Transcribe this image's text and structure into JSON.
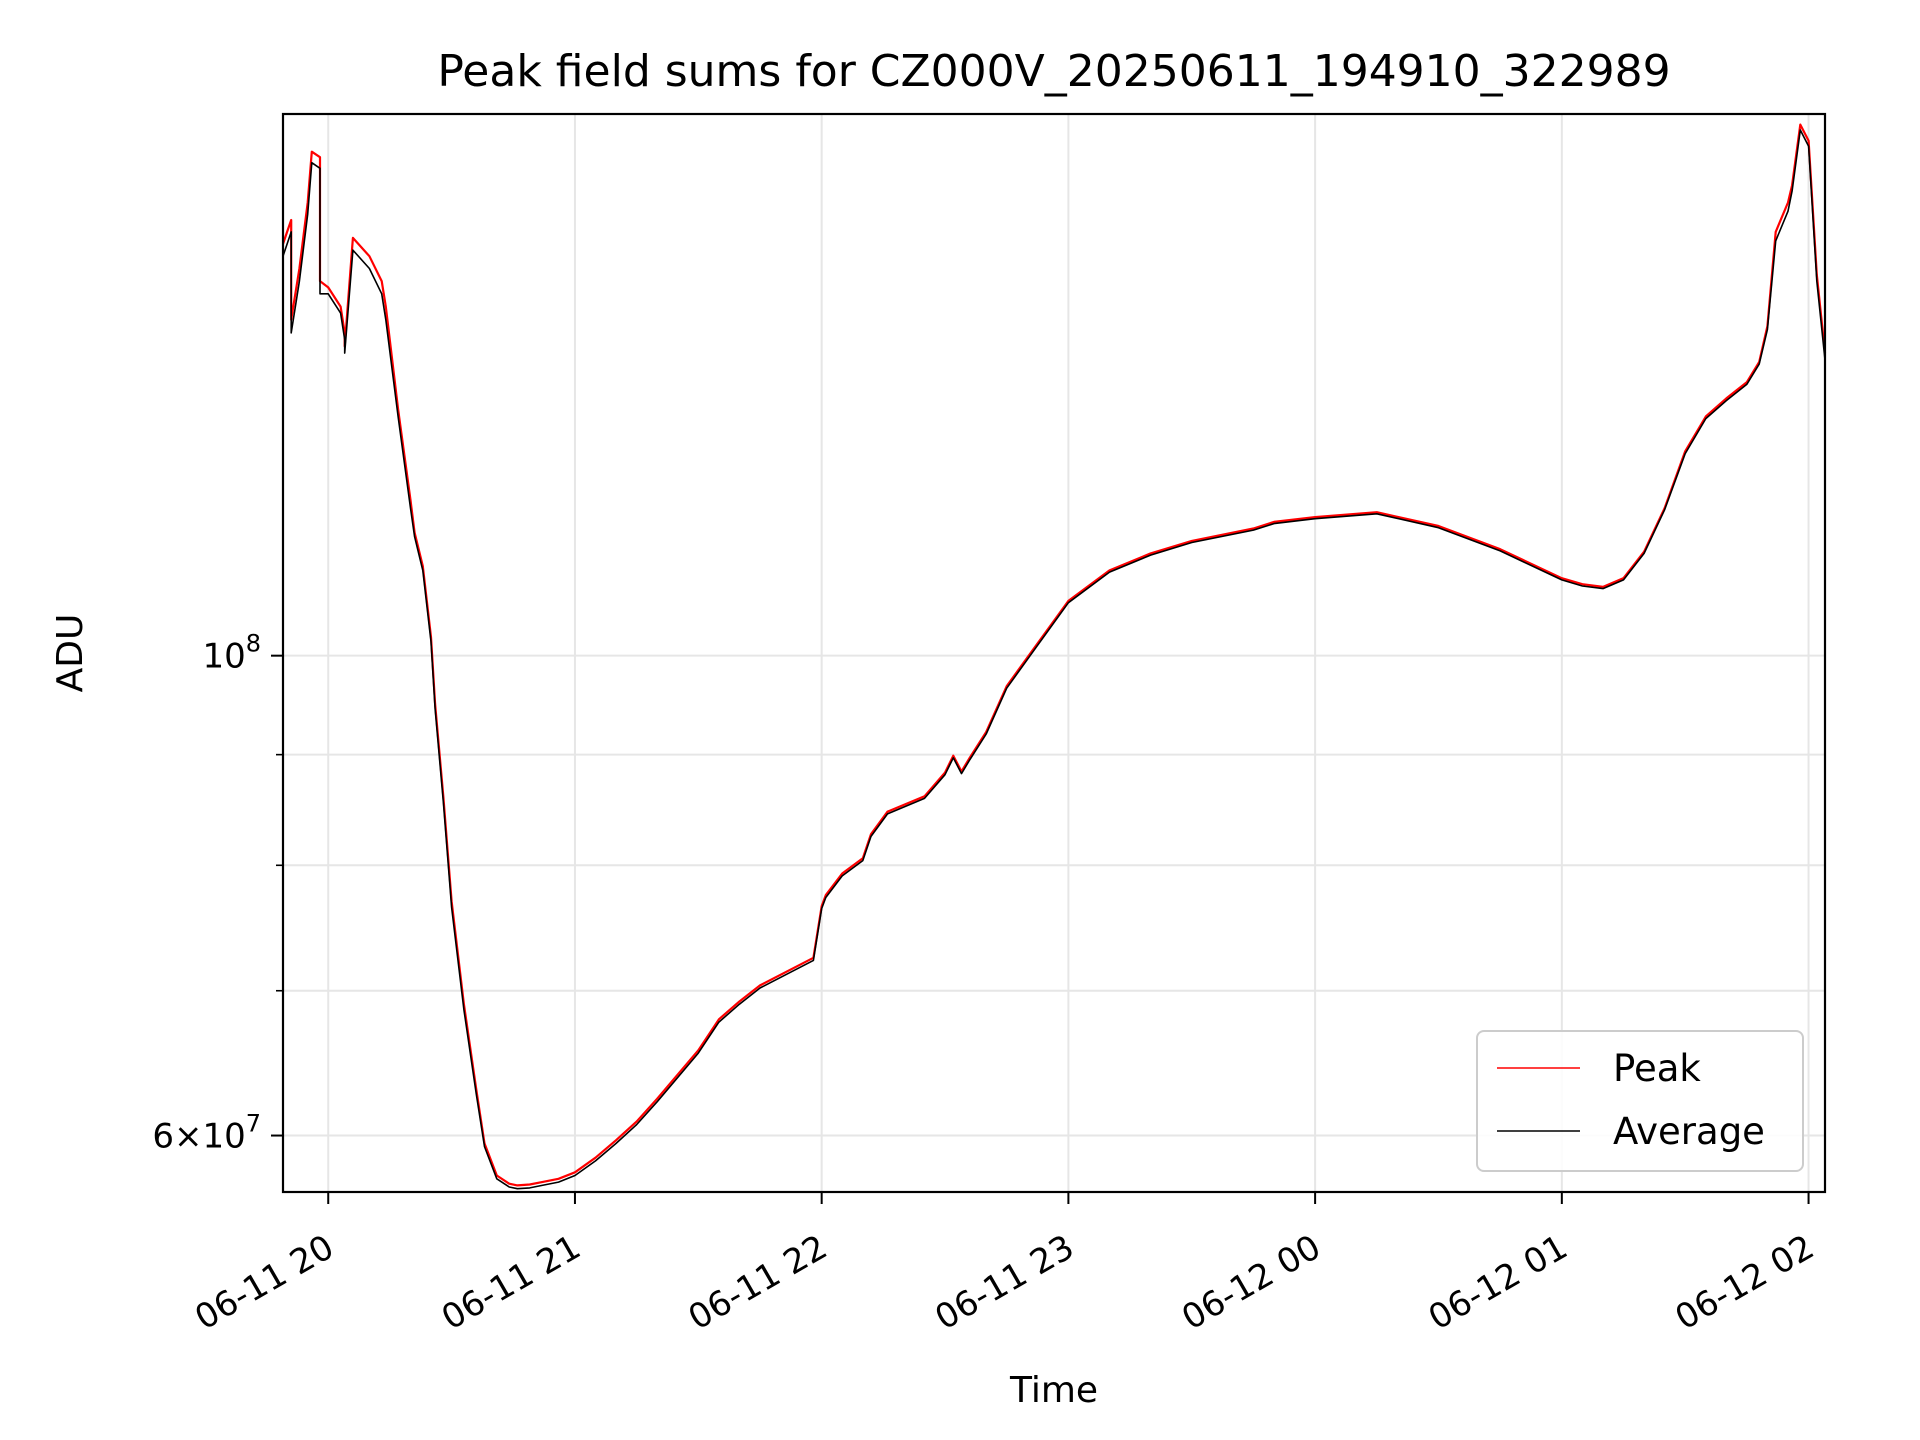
{
  "chart_data": {
    "type": "line",
    "title": "Peak field sums for CZ000V_20250611_194910_322989",
    "xlabel": "Time",
    "ylabel": "ADU",
    "y_scale": "log",
    "ylim": [
      56500000,
      178000000
    ],
    "xlim": [
      "06-11 19:49",
      "06-12 02:04"
    ],
    "x_ticks": [
      {
        "t": "06-11 20:00",
        "label": "06-11 20"
      },
      {
        "t": "06-11 21:00",
        "label": "06-11 21"
      },
      {
        "t": "06-11 22:00",
        "label": "06-11 22"
      },
      {
        "t": "06-11 23:00",
        "label": "06-11 23"
      },
      {
        "t": "06-12 00:00",
        "label": "06-12 00"
      },
      {
        "t": "06-12 01:00",
        "label": "06-12 01"
      },
      {
        "t": "06-12 02:00",
        "label": "06-12 02"
      }
    ],
    "y_ticks": [
      {
        "v": 100000000,
        "base": "10",
        "exp": "8",
        "mant": ""
      },
      {
        "v": 60000000,
        "base": "10",
        "exp": "7",
        "mant": "6×"
      }
    ],
    "y_minor_ticks": [
      70000000,
      80000000,
      90000000
    ],
    "grid": true,
    "legend_position": "lower-right",
    "series": [
      {
        "name": "Peak",
        "color": "#ff0000",
        "x": [
          "06-11 19:49",
          "06-11 19:50",
          "06-11 19:51",
          "06-11 19:51",
          "06-11 19:53",
          "06-11 19:55",
          "06-11 19:56",
          "06-11 19:58",
          "06-11 19:58",
          "06-11 20:00",
          "06-11 20:03",
          "06-11 20:04",
          "06-11 20:04",
          "06-11 20:06",
          "06-11 20:10",
          "06-11 20:13",
          "06-11 20:14",
          "06-11 20:17",
          "06-11 20:20",
          "06-11 20:21",
          "06-11 20:23",
          "06-11 20:25",
          "06-11 20:26",
          "06-11 20:28",
          "06-11 20:30",
          "06-11 20:33",
          "06-11 20:36",
          "06-11 20:38",
          "06-11 20:41",
          "06-11 20:44",
          "06-11 20:46",
          "06-11 20:49",
          "06-11 20:52",
          "06-11 20:56",
          "06-11 21:00",
          "06-11 21:05",
          "06-11 21:10",
          "06-11 21:15",
          "06-11 21:20",
          "06-11 21:30",
          "06-11 21:35",
          "06-11 21:40",
          "06-11 21:45",
          "06-11 21:58",
          "06-11 22:00",
          "06-11 22:01",
          "06-11 22:05",
          "06-11 22:10",
          "06-11 22:12",
          "06-11 22:16",
          "06-11 22:25",
          "06-11 22:30",
          "06-11 22:32",
          "06-11 22:34",
          "06-11 22:36",
          "06-11 22:40",
          "06-11 22:45",
          "06-11 22:52",
          "06-11 23:00",
          "06-11 23:10",
          "06-11 23:20",
          "06-11 23:30",
          "06-11 23:45",
          "06-11 23:50",
          "06-12 00:00",
          "06-12 00:10",
          "06-12 00:15",
          "06-12 00:30",
          "06-12 00:45",
          "06-12 01:00",
          "06-12 01:05",
          "06-12 01:10",
          "06-12 01:15",
          "06-12 01:20",
          "06-12 01:25",
          "06-12 01:30",
          "06-12 01:35",
          "06-12 01:40",
          "06-12 01:45",
          "06-12 01:48",
          "06-12 01:50",
          "06-12 01:52",
          "06-12 01:55",
          "06-12 01:56",
          "06-12 01:58",
          "06-12 02:00",
          "06-12 02:02",
          "06-12 02:04"
        ],
        "y": [
          155000000,
          157000000,
          159000000,
          143000000,
          151000000,
          162000000,
          171000000,
          170000000,
          149000000,
          148000000,
          145000000,
          141000000,
          139000000,
          156000000,
          153000000,
          149000000,
          145000000,
          130000000,
          118000000,
          114000000,
          110000000,
          102000000,
          95000000,
          86000000,
          77000000,
          69000000,
          63000000,
          59500000,
          57500000,
          57000000,
          56900000,
          56950000,
          57100000,
          57300000,
          57700000,
          58600000,
          59700000,
          60900000,
          62400000,
          65700000,
          67900000,
          69200000,
          70400000,
          72500000,
          76600000,
          77500000,
          79300000,
          80600000,
          82700000,
          84700000,
          86100000,
          88300000,
          89900000,
          88400000,
          89700000,
          92200000,
          96800000,
          101000000,
          106000000,
          109500000,
          111500000,
          113000000,
          114500000,
          115300000,
          115900000,
          116300000,
          116500000,
          114800000,
          112000000,
          108600000,
          107900000,
          107600000,
          108600000,
          111700000,
          117000000,
          124300000,
          129000000,
          131500000,
          133800000,
          136700000,
          142000000,
          157000000,
          162000000,
          165000000,
          176000000,
          173000000,
          150000000,
          138000000
        ]
      },
      {
        "name": "Average",
        "color": "#000000",
        "x": [
          "06-11 19:49",
          "06-11 19:50",
          "06-11 19:51",
          "06-11 19:51",
          "06-11 19:53",
          "06-11 19:55",
          "06-11 19:56",
          "06-11 19:58",
          "06-11 19:58",
          "06-11 20:00",
          "06-11 20:03",
          "06-11 20:04",
          "06-11 20:04",
          "06-11 20:06",
          "06-11 20:10",
          "06-11 20:13",
          "06-11 20:14",
          "06-11 20:17",
          "06-11 20:20",
          "06-11 20:21",
          "06-11 20:23",
          "06-11 20:25",
          "06-11 20:26",
          "06-11 20:28",
          "06-11 20:30",
          "06-11 20:33",
          "06-11 20:36",
          "06-11 20:38",
          "06-11 20:41",
          "06-11 20:44",
          "06-11 20:46",
          "06-11 20:49",
          "06-11 20:52",
          "06-11 20:56",
          "06-11 21:00",
          "06-11 21:05",
          "06-11 21:10",
          "06-11 21:15",
          "06-11 21:20",
          "06-11 21:30",
          "06-11 21:35",
          "06-11 21:40",
          "06-11 21:45",
          "06-11 21:58",
          "06-11 22:00",
          "06-11 22:01",
          "06-11 22:05",
          "06-11 22:10",
          "06-11 22:12",
          "06-11 22:16",
          "06-11 22:25",
          "06-11 22:30",
          "06-11 22:32",
          "06-11 22:34",
          "06-11 22:36",
          "06-11 22:40",
          "06-11 22:45",
          "06-11 22:52",
          "06-11 23:00",
          "06-11 23:10",
          "06-11 23:20",
          "06-11 23:30",
          "06-11 23:45",
          "06-11 23:50",
          "06-12 00:00",
          "06-12 00:10",
          "06-12 00:15",
          "06-12 00:30",
          "06-12 00:45",
          "06-12 01:00",
          "06-12 01:05",
          "06-12 01:10",
          "06-12 01:15",
          "06-12 01:20",
          "06-12 01:25",
          "06-12 01:30",
          "06-12 01:35",
          "06-12 01:40",
          "06-12 01:45",
          "06-12 01:48",
          "06-12 01:50",
          "06-12 01:52",
          "06-12 01:55",
          "06-12 01:56",
          "06-12 01:58",
          "06-12 02:00",
          "06-12 02:02",
          "06-12 02:04"
        ],
        "y": [
          153000000,
          155000000,
          157000000,
          141000000,
          149000000,
          160000000,
          169000000,
          168000000,
          147000000,
          147000000,
          144000000,
          140000000,
          138000000,
          154000000,
          151000000,
          147000000,
          143000000,
          129000000,
          117000000,
          113500000,
          109500000,
          101500000,
          94500000,
          85500000,
          76500000,
          68600000,
          62700000,
          59300000,
          57300000,
          56800000,
          56700000,
          56750000,
          56900000,
          57100000,
          57500000,
          58400000,
          59500000,
          60700000,
          62200000,
          65500000,
          67700000,
          69000000,
          70200000,
          72300000,
          76400000,
          77300000,
          79100000,
          80400000,
          82500000,
          84500000,
          85900000,
          88100000,
          89700000,
          88200000,
          89500000,
          92000000,
          96600000,
          100800000,
          105800000,
          109300000,
          111300000,
          112800000,
          114300000,
          115100000,
          115700000,
          116100000,
          116300000,
          114600000,
          111800000,
          108400000,
          107700000,
          107400000,
          108400000,
          111500000,
          116800000,
          124000000,
          128700000,
          131200000,
          133500000,
          136400000,
          141500000,
          155500000,
          160500000,
          164000000,
          175000000,
          172000000,
          149000000,
          137000000
        ]
      }
    ]
  }
}
